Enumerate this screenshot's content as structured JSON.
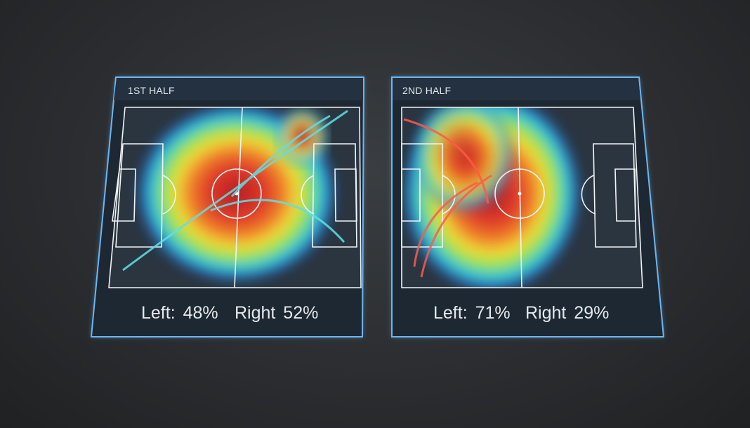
{
  "panels": [
    {
      "title": "1ST HALF",
      "left_label": "Left: 48%",
      "right_label": "Right 52%",
      "left_pct": 48,
      "right_pct": 52,
      "arrow_color": "#5fe0e6",
      "focus": "center"
    },
    {
      "title": "2ND HALF",
      "left_label": "Left: 71%",
      "right_label": "Right 29%",
      "left_pct": 71,
      "right_pct": 29,
      "arrow_color": "#ff5a4a",
      "focus": "left-center"
    }
  ],
  "colors": {
    "frame": "#5aa8e8",
    "panel_bg": "#1f2a36",
    "heat": [
      "#2a6fd6",
      "#2fd0d8",
      "#8ee04a",
      "#f2e23a",
      "#f08a2a",
      "#e03a2a",
      "#b21e24"
    ]
  }
}
